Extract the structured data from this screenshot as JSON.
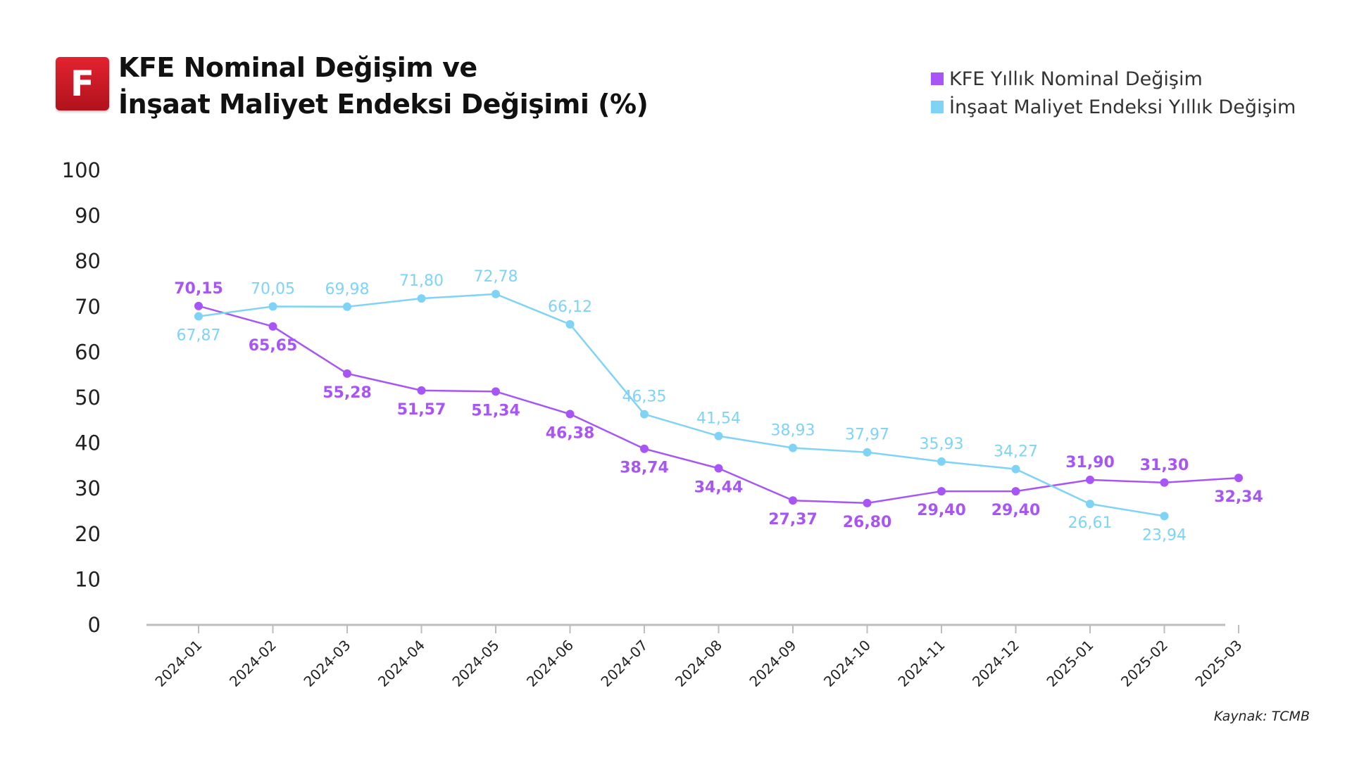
{
  "header": {
    "logo_letter": "F",
    "title_line1": "KFE Nominal Değişim ve",
    "title_line2": "İnşaat Maliyet Endeksi Değişimi (%)"
  },
  "source": "Kaynak: TCMB",
  "colors": {
    "kfe": "#a855f7",
    "insaat": "#7fd3f7",
    "axis": "#bdbdbd"
  },
  "chart_data": {
    "type": "line",
    "title": "KFE Nominal Değişim ve İnşaat Maliyet Endeksi Değişimi (%)",
    "xlabel": "",
    "ylabel": "",
    "ylim": [
      0,
      100
    ],
    "yticks": [
      0,
      10,
      20,
      30,
      40,
      50,
      60,
      70,
      80,
      90,
      100
    ],
    "grid": false,
    "legend_position": "top-right",
    "categories": [
      "2024-01",
      "2024-02",
      "2024-03",
      "2024-04",
      "2024-05",
      "2024-06",
      "2024-07",
      "2024-08",
      "2024-09",
      "2024-10",
      "2024-11",
      "2024-12",
      "2025-01",
      "2025-02",
      "2025-03"
    ],
    "series": [
      {
        "name": "KFE Yıllık Nominal Değişim",
        "color": "#a855f7",
        "values": [
          70.15,
          65.65,
          55.28,
          51.57,
          51.34,
          46.38,
          38.74,
          34.44,
          27.37,
          26.8,
          29.4,
          29.4,
          31.9,
          31.3,
          32.34
        ],
        "labels": [
          "70,15",
          "65,65",
          "55,28",
          "51,57",
          "51,34",
          "46,38",
          "38,74",
          "34,44",
          "27,37",
          "26,80",
          "29,40",
          "29,40",
          "31,90",
          "31,30",
          "32,34"
        ]
      },
      {
        "name": "İnşaat Maliyet Endeksi Yıllık Değişim",
        "color": "#7fd3f7",
        "values": [
          67.87,
          70.05,
          69.98,
          71.8,
          72.78,
          66.12,
          46.35,
          41.54,
          38.93,
          37.97,
          35.93,
          34.27,
          26.61,
          23.94,
          null
        ],
        "labels": [
          "67,87",
          "70,05",
          "69,98",
          "71,80",
          "72,78",
          "66,12",
          "46,35",
          "41,54",
          "38,93",
          "37,97",
          "35,93",
          "34,27",
          "26,61",
          "23,94",
          null
        ]
      }
    ]
  }
}
